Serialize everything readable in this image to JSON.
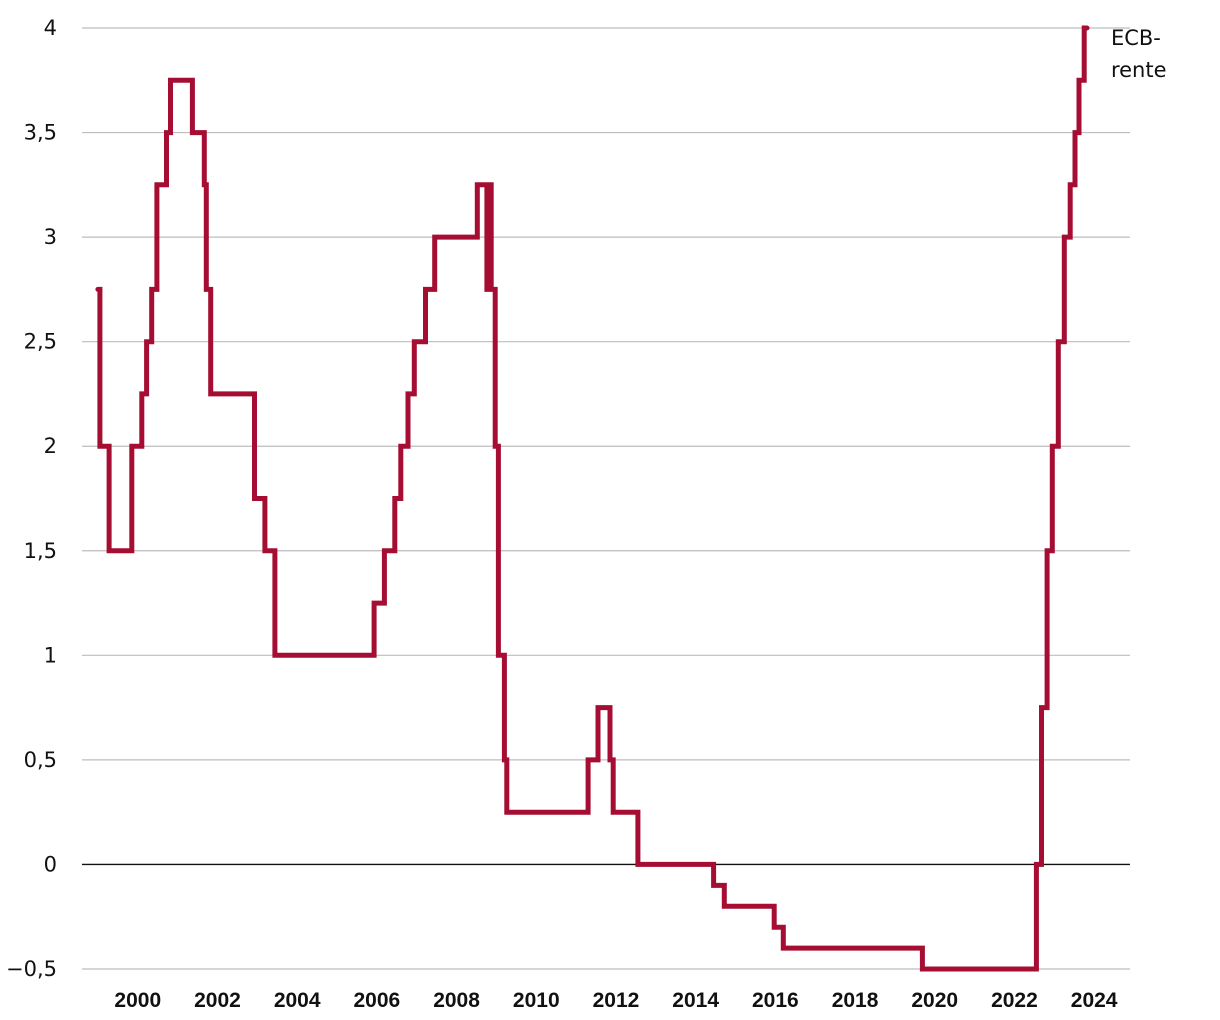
{
  "chart_data": {
    "type": "line",
    "step": true,
    "title": "",
    "xlabel": "",
    "ylabel": "",
    "xlim": [
      1998.6,
      2024.9
    ],
    "ylim": [
      -0.5,
      4
    ],
    "grid": true,
    "colors": {
      "series": "#a50d33",
      "grid": "#bdbdbd",
      "zero_line": "#111111"
    },
    "y_ticks": [
      {
        "value": -0.5,
        "label": "−0,5"
      },
      {
        "value": 0,
        "label": "0"
      },
      {
        "value": 0.5,
        "label": "0,5"
      },
      {
        "value": 1,
        "label": "1"
      },
      {
        "value": 1.5,
        "label": "1,5"
      },
      {
        "value": 2,
        "label": "2"
      },
      {
        "value": 2.5,
        "label": "2,5"
      },
      {
        "value": 3,
        "label": "3"
      },
      {
        "value": 3.5,
        "label": "3,5"
      },
      {
        "value": 4,
        "label": "4"
      }
    ],
    "x_ticks": [
      {
        "value": 2000,
        "label": "2000"
      },
      {
        "value": 2002,
        "label": "2002"
      },
      {
        "value": 2004,
        "label": "2004"
      },
      {
        "value": 2006,
        "label": "2006"
      },
      {
        "value": 2008,
        "label": "2008"
      },
      {
        "value": 2010,
        "label": "2010"
      },
      {
        "value": 2012,
        "label": "2012"
      },
      {
        "value": 2014,
        "label": "2014"
      },
      {
        "value": 2016,
        "label": "2016"
      },
      {
        "value": 2018,
        "label": "2018"
      },
      {
        "value": 2020,
        "label": "2020"
      },
      {
        "value": 2022,
        "label": "2022"
      },
      {
        "value": 2024,
        "label": "2024"
      }
    ],
    "series": [
      {
        "name": "ECB-rente",
        "label_lines": [
          "ECB-",
          "rente"
        ],
        "points": [
          [
            1999.0,
            2.75
          ],
          [
            1999.05,
            2.0
          ],
          [
            1999.28,
            1.5
          ],
          [
            1999.85,
            2.0
          ],
          [
            2000.1,
            2.25
          ],
          [
            2000.22,
            2.5
          ],
          [
            2000.35,
            2.75
          ],
          [
            2000.48,
            3.25
          ],
          [
            2000.72,
            3.5
          ],
          [
            2000.82,
            3.75
          ],
          [
            2001.37,
            3.5
          ],
          [
            2001.67,
            3.25
          ],
          [
            2001.72,
            2.75
          ],
          [
            2001.83,
            2.25
          ],
          [
            2002.93,
            1.75
          ],
          [
            2003.19,
            1.5
          ],
          [
            2003.44,
            1.0
          ],
          [
            2005.93,
            1.25
          ],
          [
            2006.19,
            1.5
          ],
          [
            2006.45,
            1.75
          ],
          [
            2006.6,
            2.0
          ],
          [
            2006.78,
            2.25
          ],
          [
            2006.94,
            2.5
          ],
          [
            2007.22,
            2.75
          ],
          [
            2007.45,
            3.0
          ],
          [
            2008.52,
            3.25
          ],
          [
            2008.76,
            2.75
          ],
          [
            2008.8,
            3.25
          ],
          [
            2008.87,
            2.75
          ],
          [
            2008.97,
            2.0
          ],
          [
            2009.05,
            1.0
          ],
          [
            2009.2,
            0.5
          ],
          [
            2009.26,
            0.25
          ],
          [
            2011.3,
            0.5
          ],
          [
            2011.55,
            0.75
          ],
          [
            2011.85,
            0.5
          ],
          [
            2011.93,
            0.25
          ],
          [
            2012.55,
            0.0
          ],
          [
            2014.45,
            -0.1
          ],
          [
            2014.72,
            -0.2
          ],
          [
            2015.97,
            -0.3
          ],
          [
            2016.2,
            -0.4
          ],
          [
            2019.69,
            -0.5
          ],
          [
            2022.55,
            0.0
          ],
          [
            2022.68,
            0.75
          ],
          [
            2022.82,
            1.5
          ],
          [
            2022.95,
            2.0
          ],
          [
            2023.1,
            2.5
          ],
          [
            2023.25,
            3.0
          ],
          [
            2023.4,
            3.25
          ],
          [
            2023.52,
            3.5
          ],
          [
            2023.62,
            3.75
          ],
          [
            2023.75,
            4.0
          ],
          [
            2023.82,
            4.0
          ]
        ]
      }
    ]
  }
}
